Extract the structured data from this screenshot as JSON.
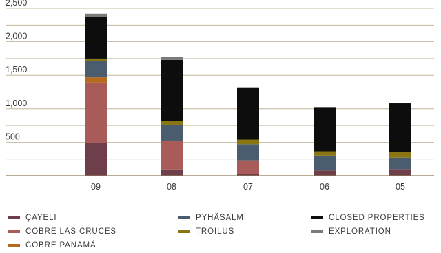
{
  "chart_data": {
    "type": "bar",
    "stacked": true,
    "categories": [
      "09",
      "08",
      "07",
      "06",
      "05"
    ],
    "y_ticks": [
      "2,500",
      "2,000",
      "1,500",
      "1,000",
      "500"
    ],
    "ylim": [
      0,
      2500
    ],
    "grid": true,
    "legend_position": "bottom",
    "series": [
      {
        "name": "ÇAYELI",
        "color": "#6e3f4b",
        "values": [
          490,
          95,
          30,
          80,
          100
        ]
      },
      {
        "name": "COBRE LAS CRUCES",
        "color": "#a85b59",
        "values": [
          900,
          430,
          200,
          0,
          0
        ]
      },
      {
        "name": "COBRE PANAMÁ",
        "color": "#b56a1f",
        "values": [
          80,
          0,
          0,
          0,
          0
        ]
      },
      {
        "name": "PYHÄSALMI",
        "color": "#4a5d6e",
        "values": [
          240,
          230,
          240,
          220,
          170
        ]
      },
      {
        "name": "TROILUS",
        "color": "#8a7513",
        "values": [
          40,
          65,
          70,
          65,
          80
        ]
      },
      {
        "name": "CLOSED PROPERTIES",
        "color": "#0d0d0d",
        "values": [
          620,
          910,
          780,
          660,
          730
        ]
      },
      {
        "name": "EXPLORATION",
        "color": "#7b7b7b",
        "values": [
          50,
          40,
          0,
          0,
          0
        ]
      }
    ]
  },
  "legend": {
    "items": [
      {
        "label": "ÇAYELI",
        "color": "#6e3f4b"
      },
      {
        "label": "COBRE LAS CRUCES",
        "color": "#a85b59"
      },
      {
        "label": "COBRE PANAMÁ",
        "color": "#b56a1f"
      },
      {
        "label": "PYHÄSALMI",
        "color": "#4a5d6e"
      },
      {
        "label": "TROILUS",
        "color": "#8a7513"
      },
      {
        "label": "CLOSED PROPERTIES",
        "color": "#0d0d0d"
      },
      {
        "label": "EXPLORATION",
        "color": "#7b7b7b"
      }
    ]
  },
  "colors": {
    "grid": "#b9ac8c",
    "axis": "#8c7c58",
    "text": "#3a3a3a"
  }
}
